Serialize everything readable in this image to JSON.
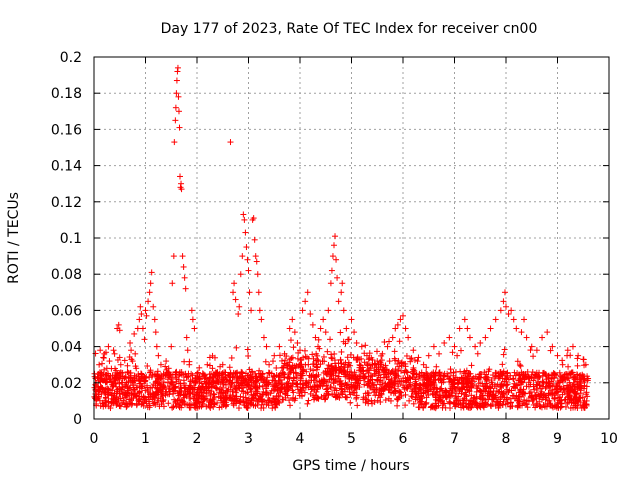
{
  "chart_data": {
    "type": "scatter",
    "title": "Day 177 of 2023, Rate Of TEC Index for receiver cn00",
    "xlabel": "GPS time / hours",
    "ylabel": "ROTI / TECUs",
    "xlim": [
      0,
      10
    ],
    "ylim": [
      0,
      0.2
    ],
    "xticks": [
      0,
      1,
      2,
      3,
      4,
      5,
      6,
      7,
      8,
      9,
      10
    ],
    "yticks": [
      0,
      0.02,
      0.04,
      0.06,
      0.08,
      0.1,
      0.12,
      0.14,
      0.16,
      0.18,
      0.2
    ],
    "xtick_labels": [
      "0",
      "1",
      "2",
      "3",
      "4",
      "5",
      "6",
      "7",
      "8",
      "9",
      "10"
    ],
    "ytick_labels": [
      "0",
      "0.02",
      "0.04",
      "0.06",
      "0.08",
      "0.1",
      "0.12",
      "0.14",
      "0.16",
      "0.18",
      "0.2"
    ],
    "grid": true,
    "marker": "+",
    "series": [
      {
        "name": "ROTI",
        "color": "#ff0000",
        "points": [
          [
            0.05,
            0.012
          ],
          [
            0.08,
            0.018
          ],
          [
            0.1,
            0.03
          ],
          [
            0.12,
            0.038
          ],
          [
            0.15,
            0.025
          ],
          [
            0.18,
            0.034
          ],
          [
            0.2,
            0.036
          ],
          [
            0.22,
            0.016
          ],
          [
            0.25,
            0.028
          ],
          [
            0.28,
            0.04
          ],
          [
            0.3,
            0.032
          ],
          [
            0.32,
            0.022
          ],
          [
            0.35,
            0.014
          ],
          [
            0.38,
            0.038
          ],
          [
            0.4,
            0.036
          ],
          [
            0.42,
            0.02
          ],
          [
            0.45,
            0.05
          ],
          [
            0.48,
            0.052
          ],
          [
            0.5,
            0.049
          ],
          [
            0.52,
            0.03
          ],
          [
            0.55,
            0.02
          ],
          [
            0.6,
            0.018
          ],
          [
            0.65,
            0.026
          ],
          [
            0.7,
            0.042
          ],
          [
            0.72,
            0.038
          ],
          [
            0.75,
            0.032
          ],
          [
            0.78,
            0.047
          ],
          [
            0.8,
            0.036
          ],
          [
            0.82,
            0.028
          ],
          [
            0.85,
            0.05
          ],
          [
            0.88,
            0.055
          ],
          [
            0.9,
            0.062
          ],
          [
            0.92,
            0.058
          ],
          [
            0.95,
            0.05
          ],
          [
            0.98,
            0.044
          ],
          [
            1.0,
            0.06
          ],
          [
            1.02,
            0.057
          ],
          [
            1.05,
            0.065
          ],
          [
            1.08,
            0.07
          ],
          [
            1.1,
            0.075
          ],
          [
            1.12,
            0.081
          ],
          [
            1.15,
            0.062
          ],
          [
            1.18,
            0.055
          ],
          [
            1.2,
            0.048
          ],
          [
            1.22,
            0.04
          ],
          [
            1.25,
            0.035
          ],
          [
            1.28,
            0.022
          ],
          [
            1.3,
            0.03
          ],
          [
            1.35,
            0.025
          ],
          [
            1.4,
            0.032
          ],
          [
            1.45,
            0.028
          ],
          [
            1.5,
            0.04
          ],
          [
            1.52,
            0.075
          ],
          [
            1.55,
            0.09
          ],
          [
            1.56,
            0.153
          ],
          [
            1.58,
            0.165
          ],
          [
            1.59,
            0.172
          ],
          [
            1.6,
            0.18
          ],
          [
            1.61,
            0.187
          ],
          [
            1.62,
            0.192
          ],
          [
            1.63,
            0.194
          ],
          [
            1.64,
            0.178
          ],
          [
            1.65,
            0.17
          ],
          [
            1.66,
            0.161
          ],
          [
            1.67,
            0.134
          ],
          [
            1.68,
            0.128
          ],
          [
            1.69,
            0.13
          ],
          [
            1.7,
            0.127
          ],
          [
            1.72,
            0.09
          ],
          [
            1.74,
            0.084
          ],
          [
            1.76,
            0.078
          ],
          [
            1.78,
            0.072
          ],
          [
            1.8,
            0.045
          ],
          [
            1.82,
            0.038
          ],
          [
            1.85,
            0.03
          ],
          [
            1.9,
            0.06
          ],
          [
            1.92,
            0.055
          ],
          [
            1.95,
            0.05
          ],
          [
            2.0,
            0.025
          ],
          [
            2.05,
            0.02
          ],
          [
            2.1,
            0.018
          ],
          [
            2.2,
            0.03
          ],
          [
            2.25,
            0.034
          ],
          [
            2.3,
            0.028
          ],
          [
            2.4,
            0.022
          ],
          [
            2.5,
            0.03
          ],
          [
            2.6,
            0.024
          ],
          [
            2.65,
            0.153
          ],
          [
            2.7,
            0.07
          ],
          [
            2.72,
            0.075
          ],
          [
            2.75,
            0.066
          ],
          [
            2.8,
            0.058
          ],
          [
            2.82,
            0.062
          ],
          [
            2.85,
            0.08
          ],
          [
            2.88,
            0.09
          ],
          [
            2.9,
            0.113
          ],
          [
            2.92,
            0.11
          ],
          [
            2.94,
            0.103
          ],
          [
            2.96,
            0.095
          ],
          [
            2.98,
            0.088
          ],
          [
            3.0,
            0.082
          ],
          [
            3.02,
            0.07
          ],
          [
            3.05,
            0.06
          ],
          [
            3.08,
            0.11
          ],
          [
            3.1,
            0.111
          ],
          [
            3.12,
            0.099
          ],
          [
            3.14,
            0.09
          ],
          [
            3.16,
            0.087
          ],
          [
            3.18,
            0.08
          ],
          [
            3.2,
            0.07
          ],
          [
            3.22,
            0.06
          ],
          [
            3.25,
            0.055
          ],
          [
            3.3,
            0.045
          ],
          [
            3.35,
            0.04
          ],
          [
            3.4,
            0.03
          ],
          [
            3.5,
            0.035
          ],
          [
            3.6,
            0.04
          ],
          [
            3.7,
            0.036
          ],
          [
            3.8,
            0.05
          ],
          [
            3.85,
            0.055
          ],
          [
            3.9,
            0.048
          ],
          [
            3.95,
            0.042
          ],
          [
            4.0,
            0.038
          ],
          [
            4.05,
            0.06
          ],
          [
            4.1,
            0.065
          ],
          [
            4.15,
            0.07
          ],
          [
            4.2,
            0.058
          ],
          [
            4.25,
            0.052
          ],
          [
            4.3,
            0.045
          ],
          [
            4.35,
            0.04
          ],
          [
            4.4,
            0.05
          ],
          [
            4.45,
            0.055
          ],
          [
            4.5,
            0.048
          ],
          [
            4.55,
            0.06
          ],
          [
            4.6,
            0.075
          ],
          [
            4.62,
            0.082
          ],
          [
            4.64,
            0.09
          ],
          [
            4.66,
            0.096
          ],
          [
            4.68,
            0.101
          ],
          [
            4.7,
            0.088
          ],
          [
            4.72,
            0.078
          ],
          [
            4.75,
            0.065
          ],
          [
            4.8,
            0.07
          ],
          [
            4.82,
            0.075
          ],
          [
            4.85,
            0.06
          ],
          [
            4.9,
            0.05
          ],
          [
            4.95,
            0.044
          ],
          [
            5.0,
            0.055
          ],
          [
            5.05,
            0.048
          ],
          [
            5.1,
            0.042
          ],
          [
            5.2,
            0.04
          ],
          [
            5.3,
            0.035
          ],
          [
            5.4,
            0.03
          ],
          [
            5.5,
            0.032
          ],
          [
            5.6,
            0.036
          ],
          [
            5.7,
            0.04
          ],
          [
            5.8,
            0.045
          ],
          [
            5.85,
            0.05
          ],
          [
            5.9,
            0.052
          ],
          [
            5.95,
            0.055
          ],
          [
            6.0,
            0.057
          ],
          [
            6.05,
            0.05
          ],
          [
            6.1,
            0.045
          ],
          [
            6.2,
            0.038
          ],
          [
            6.3,
            0.034
          ],
          [
            6.4,
            0.03
          ],
          [
            6.5,
            0.035
          ],
          [
            6.6,
            0.04
          ],
          [
            6.7,
            0.036
          ],
          [
            6.8,
            0.042
          ],
          [
            6.9,
            0.045
          ],
          [
            7.0,
            0.04
          ],
          [
            7.05,
            0.035
          ],
          [
            7.1,
            0.05
          ],
          [
            7.2,
            0.055
          ],
          [
            7.25,
            0.05
          ],
          [
            7.3,
            0.045
          ],
          [
            7.4,
            0.04
          ],
          [
            7.5,
            0.042
          ],
          [
            7.6,
            0.045
          ],
          [
            7.7,
            0.05
          ],
          [
            7.8,
            0.055
          ],
          [
            7.9,
            0.06
          ],
          [
            7.95,
            0.065
          ],
          [
            7.98,
            0.07
          ],
          [
            8.0,
            0.062
          ],
          [
            8.05,
            0.058
          ],
          [
            8.1,
            0.06
          ],
          [
            8.15,
            0.055
          ],
          [
            8.2,
            0.05
          ],
          [
            8.3,
            0.048
          ],
          [
            8.35,
            0.055
          ],
          [
            8.4,
            0.045
          ],
          [
            8.5,
            0.04
          ],
          [
            8.6,
            0.038
          ],
          [
            8.7,
            0.045
          ],
          [
            8.8,
            0.048
          ],
          [
            8.9,
            0.04
          ],
          [
            9.0,
            0.035
          ],
          [
            9.1,
            0.03
          ],
          [
            9.2,
            0.038
          ],
          [
            9.3,
            0.04
          ],
          [
            9.4,
            0.035
          ],
          [
            9.5,
            0.033
          ],
          [
            9.55,
            0.03
          ]
        ]
      }
    ],
    "baseline_band": {
      "x_start": 0.0,
      "x_end": 9.6,
      "description": "dense cloud of points between approximately 0.005 and 0.03"
    }
  }
}
